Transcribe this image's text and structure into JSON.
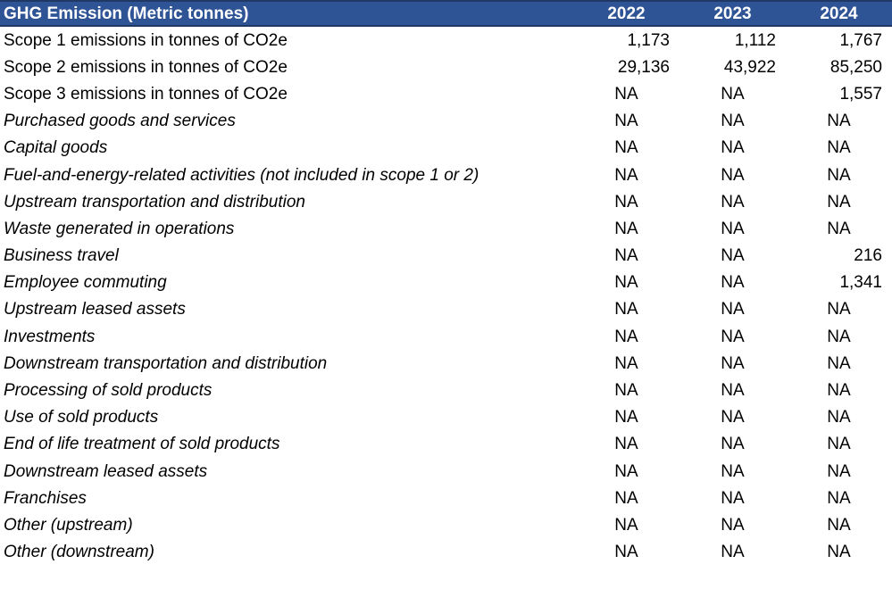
{
  "chart_data": {
    "type": "table",
    "title": "GHG Emission (Metric tonnes)",
    "year_columns": [
      "2022",
      "2023",
      "2024"
    ],
    "rows": [
      {
        "label": "Scope 1 emissions in tonnes of CO2e",
        "italic": false,
        "values": [
          "1,173",
          "1,112",
          "1,767"
        ]
      },
      {
        "label": "Scope 2 emissions in tonnes of CO2e",
        "italic": false,
        "values": [
          "29,136",
          "43,922",
          "85,250"
        ]
      },
      {
        "label": "Scope 3 emissions in tonnes of CO2e",
        "italic": false,
        "values": [
          "NA",
          "NA",
          "1,557"
        ]
      },
      {
        "label": "Purchased goods and services",
        "italic": true,
        "values": [
          "NA",
          "NA",
          "NA"
        ]
      },
      {
        "label": "Capital goods",
        "italic": true,
        "values": [
          "NA",
          "NA",
          "NA"
        ]
      },
      {
        "label": "Fuel-and-energy-related activities (not included in scope 1 or 2)",
        "italic": true,
        "values": [
          "NA",
          "NA",
          "NA"
        ]
      },
      {
        "label": "Upstream transportation and distribution",
        "italic": true,
        "values": [
          "NA",
          "NA",
          "NA"
        ]
      },
      {
        "label": "Waste generated in operations",
        "italic": true,
        "values": [
          "NA",
          "NA",
          "NA"
        ]
      },
      {
        "label": "Business travel",
        "italic": true,
        "values": [
          "NA",
          "NA",
          "216"
        ]
      },
      {
        "label": "Employee commuting",
        "italic": true,
        "values": [
          "NA",
          "NA",
          "1,341"
        ]
      },
      {
        "label": "Upstream leased assets",
        "italic": true,
        "values": [
          "NA",
          "NA",
          "NA"
        ]
      },
      {
        "label": "Investments",
        "italic": true,
        "values": [
          "NA",
          "NA",
          "NA"
        ]
      },
      {
        "label": "Downstream transportation and distribution",
        "italic": true,
        "values": [
          "NA",
          "NA",
          "NA"
        ]
      },
      {
        "label": "Processing of sold products",
        "italic": true,
        "values": [
          "NA",
          "NA",
          "NA"
        ]
      },
      {
        "label": "Use of sold products",
        "italic": true,
        "values": [
          "NA",
          "NA",
          "NA"
        ]
      },
      {
        "label": "End of life treatment of sold products",
        "italic": true,
        "values": [
          "NA",
          "NA",
          "NA"
        ]
      },
      {
        "label": "Downstream leased assets",
        "italic": true,
        "values": [
          "NA",
          "NA",
          "NA"
        ]
      },
      {
        "label": "Franchises",
        "italic": true,
        "values": [
          "NA",
          "NA",
          "NA"
        ]
      },
      {
        "label": "Other (upstream)",
        "italic": true,
        "values": [
          "NA",
          "NA",
          "NA"
        ]
      },
      {
        "label": "Other (downstream)",
        "italic": true,
        "values": [
          "NA",
          "NA",
          "NA"
        ]
      }
    ]
  },
  "styles": {
    "header_bg": "#2F5496",
    "header_border": "#1F3864",
    "header_text": "#FFFFFF",
    "body_text": "#000000"
  }
}
